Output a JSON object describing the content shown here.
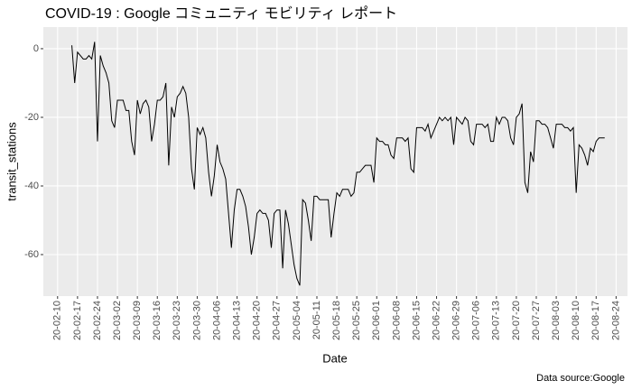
{
  "chart_data": {
    "type": "line",
    "title": "COVID-19 : Google コミュニティ モビリティ レポート",
    "xlabel": "Date",
    "ylabel": "transit_stations",
    "caption": "Data source:Google",
    "color": "#000000",
    "grid": true,
    "xlim": [
      "2020-02-05",
      "2020-08-28"
    ],
    "ylim": [
      -72.1,
      6.3
    ],
    "yticks": [
      0,
      -20,
      -40,
      -60
    ],
    "xticks": [
      {
        "value": "2020-02-10",
        "label": "20-02-10"
      },
      {
        "value": "2020-02-17",
        "label": "20-02-17"
      },
      {
        "value": "2020-02-24",
        "label": "20-02-24"
      },
      {
        "value": "2020-03-02",
        "label": "20-03-02"
      },
      {
        "value": "2020-03-09",
        "label": "20-03-09"
      },
      {
        "value": "2020-03-16",
        "label": "20-03-16"
      },
      {
        "value": "2020-03-23",
        "label": "20-03-23"
      },
      {
        "value": "2020-03-30",
        "label": "20-03-30"
      },
      {
        "value": "2020-04-06",
        "label": "20-04-06"
      },
      {
        "value": "2020-04-13",
        "label": "20-04-13"
      },
      {
        "value": "2020-04-20",
        "label": "20-04-20"
      },
      {
        "value": "2020-04-27",
        "label": "20-04-27"
      },
      {
        "value": "2020-05-04",
        "label": "20-05-04"
      },
      {
        "value": "2020-05-11",
        "label": "20-05-11"
      },
      {
        "value": "2020-05-18",
        "label": "20-05-18"
      },
      {
        "value": "2020-05-25",
        "label": "20-05-25"
      },
      {
        "value": "2020-06-01",
        "label": "20-06-01"
      },
      {
        "value": "2020-06-08",
        "label": "20-06-08"
      },
      {
        "value": "2020-06-15",
        "label": "20-06-15"
      },
      {
        "value": "2020-06-22",
        "label": "20-06-22"
      },
      {
        "value": "2020-06-29",
        "label": "20-06-29"
      },
      {
        "value": "2020-07-06",
        "label": "20-07-06"
      },
      {
        "value": "2020-07-13",
        "label": "20-07-13"
      },
      {
        "value": "2020-07-20",
        "label": "20-07-20"
      },
      {
        "value": "2020-07-27",
        "label": "20-07-27"
      },
      {
        "value": "2020-08-03",
        "label": "20-08-03"
      },
      {
        "value": "2020-08-10",
        "label": "20-08-10"
      },
      {
        "value": "2020-08-17",
        "label": "20-08-17"
      },
      {
        "value": "2020-08-24",
        "label": "20-08-24"
      }
    ],
    "x": [
      "2020-02-15",
      "2020-02-16",
      "2020-02-17",
      "2020-02-18",
      "2020-02-19",
      "2020-02-20",
      "2020-02-21",
      "2020-02-22",
      "2020-02-23",
      "2020-02-24",
      "2020-02-25",
      "2020-02-26",
      "2020-02-27",
      "2020-02-28",
      "2020-02-29",
      "2020-03-01",
      "2020-03-02",
      "2020-03-03",
      "2020-03-04",
      "2020-03-05",
      "2020-03-06",
      "2020-03-07",
      "2020-03-08",
      "2020-03-09",
      "2020-03-10",
      "2020-03-11",
      "2020-03-12",
      "2020-03-13",
      "2020-03-14",
      "2020-03-15",
      "2020-03-16",
      "2020-03-17",
      "2020-03-18",
      "2020-03-19",
      "2020-03-20",
      "2020-03-21",
      "2020-03-22",
      "2020-03-23",
      "2020-03-24",
      "2020-03-25",
      "2020-03-26",
      "2020-03-27",
      "2020-03-28",
      "2020-03-29",
      "2020-03-30",
      "2020-03-31",
      "2020-04-01",
      "2020-04-02",
      "2020-04-03",
      "2020-04-04",
      "2020-04-05",
      "2020-04-06",
      "2020-04-07",
      "2020-04-08",
      "2020-04-09",
      "2020-04-10",
      "2020-04-11",
      "2020-04-12",
      "2020-04-13",
      "2020-04-14",
      "2020-04-15",
      "2020-04-16",
      "2020-04-17",
      "2020-04-18",
      "2020-04-19",
      "2020-04-20",
      "2020-04-21",
      "2020-04-22",
      "2020-04-23",
      "2020-04-24",
      "2020-04-25",
      "2020-04-26",
      "2020-04-27",
      "2020-04-28",
      "2020-04-29",
      "2020-04-30",
      "2020-05-01",
      "2020-05-02",
      "2020-05-03",
      "2020-05-04",
      "2020-05-05",
      "2020-05-06",
      "2020-05-07",
      "2020-05-08",
      "2020-05-09",
      "2020-05-10",
      "2020-05-11",
      "2020-05-12",
      "2020-05-13",
      "2020-05-14",
      "2020-05-15",
      "2020-05-16",
      "2020-05-17",
      "2020-05-18",
      "2020-05-19",
      "2020-05-20",
      "2020-05-21",
      "2020-05-22",
      "2020-05-23",
      "2020-05-24",
      "2020-05-25",
      "2020-05-26",
      "2020-05-27",
      "2020-05-28",
      "2020-05-29",
      "2020-05-30",
      "2020-05-31",
      "2020-06-01",
      "2020-06-02",
      "2020-06-03",
      "2020-06-04",
      "2020-06-05",
      "2020-06-06",
      "2020-06-07",
      "2020-06-08",
      "2020-06-09",
      "2020-06-10",
      "2020-06-11",
      "2020-06-12",
      "2020-06-13",
      "2020-06-14",
      "2020-06-15",
      "2020-06-16",
      "2020-06-17",
      "2020-06-18",
      "2020-06-19",
      "2020-06-20",
      "2020-06-21",
      "2020-06-22",
      "2020-06-23",
      "2020-06-24",
      "2020-06-25",
      "2020-06-26",
      "2020-06-27",
      "2020-06-28",
      "2020-06-29",
      "2020-06-30",
      "2020-07-01",
      "2020-07-02",
      "2020-07-03",
      "2020-07-04",
      "2020-07-05",
      "2020-07-06",
      "2020-07-07",
      "2020-07-08",
      "2020-07-09",
      "2020-07-10",
      "2020-07-11",
      "2020-07-12",
      "2020-07-13",
      "2020-07-14",
      "2020-07-15",
      "2020-07-16",
      "2020-07-17",
      "2020-07-18",
      "2020-07-19",
      "2020-07-20",
      "2020-07-21",
      "2020-07-22",
      "2020-07-23",
      "2020-07-24",
      "2020-07-25",
      "2020-07-26",
      "2020-07-27",
      "2020-07-28",
      "2020-07-29",
      "2020-07-30",
      "2020-07-31",
      "2020-08-01",
      "2020-08-02",
      "2020-08-03",
      "2020-08-04",
      "2020-08-05",
      "2020-08-06",
      "2020-08-07",
      "2020-08-08",
      "2020-08-09",
      "2020-08-10",
      "2020-08-11",
      "2020-08-12",
      "2020-08-13",
      "2020-08-14",
      "2020-08-15",
      "2020-08-16",
      "2020-08-17",
      "2020-08-18",
      "2020-08-19",
      "2020-08-20"
    ],
    "values": [
      1,
      -10,
      -1,
      -2,
      -3,
      -3,
      -2,
      -3,
      2,
      -27,
      -2,
      -5,
      -7,
      -10,
      -21,
      -23,
      -15,
      -15,
      -15,
      -18,
      -18,
      -27,
      -31,
      -15,
      -19,
      -16,
      -15,
      -17,
      -27,
      -22,
      -15,
      -15,
      -14,
      -10,
      -34,
      -17,
      -20,
      -14,
      -13,
      -11,
      -13,
      -20,
      -35,
      -41,
      -23,
      -25,
      -23,
      -26,
      -36,
      -43,
      -37,
      -28,
      -33,
      -35,
      -38,
      -48,
      -58,
      -47,
      -41,
      -41,
      -43,
      -46,
      -52,
      -60,
      -55,
      -48,
      -47,
      -48,
      -48,
      -50,
      -58,
      -48,
      -47,
      -47,
      -64,
      -47,
      -51,
      -57,
      -63,
      -67,
      -69,
      -44,
      -45,
      -50,
      -56,
      -43,
      -43,
      -44,
      -44,
      -44,
      -44,
      -55,
      -48,
      -42,
      -43,
      -41,
      -41,
      -41,
      -43,
      -42,
      -36,
      -36,
      -35,
      -34,
      -34,
      -34,
      -39,
      -26,
      -27,
      -27,
      -28,
      -28,
      -31,
      -32,
      -26,
      -26,
      -26,
      -27,
      -26,
      -35,
      -36,
      -23,
      -23,
      -23,
      -24,
      -22,
      -26,
      -24,
      -22,
      -20,
      -21,
      -20,
      -21,
      -20,
      -28,
      -20,
      -21,
      -22,
      -20,
      -21,
      -27,
      -28,
      -22,
      -22,
      -22,
      -23,
      -22,
      -27,
      -27,
      -20,
      -22,
      -20,
      -20,
      -21,
      -26,
      -28,
      -20,
      -19,
      -16,
      -39,
      -42,
      -30,
      -33,
      -21,
      -21,
      -22,
      -22,
      -23,
      -26,
      -29,
      -22,
      -22,
      -22,
      -23,
      -23,
      -24,
      -23,
      -42,
      -28,
      -29,
      -31,
      -34,
      -29,
      -30,
      -27,
      -26,
      -26,
      -26
    ]
  }
}
